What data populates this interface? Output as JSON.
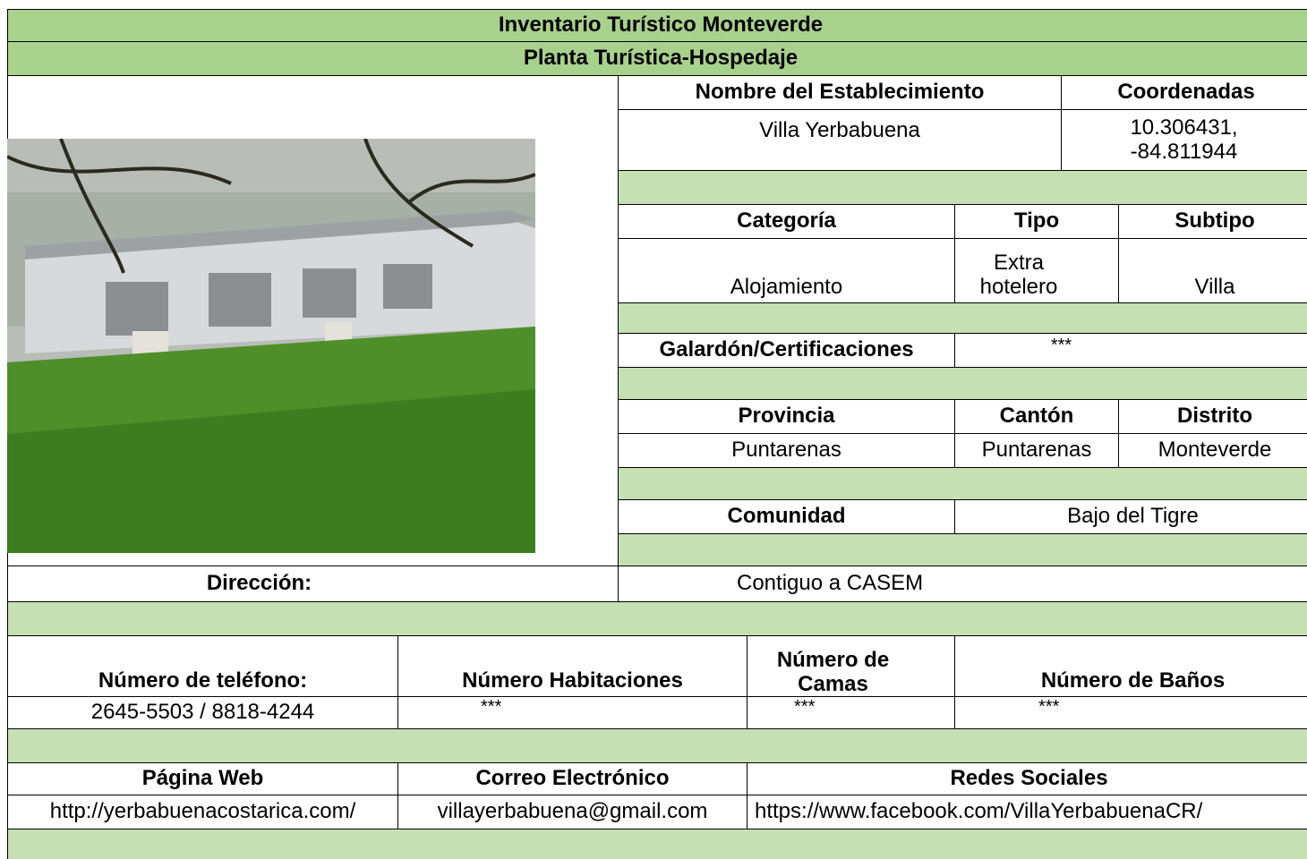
{
  "header": {
    "title": "Inventario Turístico Monteverde",
    "subtitle": "Planta Turística-Hospedaje"
  },
  "establishment": {
    "name_label": "Nombre del Establecimiento",
    "name": "Villa Yerbabuena",
    "coordinates_label": "Coordenadas",
    "coordinates": "10.306431, -84.811944"
  },
  "classification": {
    "category_label": "Categoría",
    "category": "Alojamiento",
    "type_label": "Tipo",
    "type": "Extra hotelero",
    "subtype_label": "Subtipo",
    "subtype": "Villa"
  },
  "awards": {
    "label": "Galardón/Certificaciones",
    "value": "***"
  },
  "location": {
    "province_label": "Provincia",
    "province": "Puntarenas",
    "canton_label": "Cantón",
    "canton": "Puntarenas",
    "district_label": "Distrito",
    "district": "Monteverde",
    "community_label": "Comunidad",
    "community": "Bajo del Tigre",
    "address_label": "Dirección:",
    "address": "Contiguo a CASEM"
  },
  "capacity": {
    "phone_label": "Número de teléfono:",
    "phone": "2645-5503 / 8818-4244",
    "rooms_label": "Número Habitaciones",
    "rooms": "***",
    "beds_label": "Número de Camas",
    "beds": "***",
    "baths_label": "Número de Baños",
    "baths": "***"
  },
  "contact": {
    "web_label": "Página Web",
    "web": "http://yerbabuenacostarica.com/",
    "email_label": "Correo Electrónico",
    "email": "villayerbabuena@gmail.com",
    "social_label": "Redes Sociales",
    "social": "https://www.facebook.com/VillaYerbabuenaCR/"
  }
}
